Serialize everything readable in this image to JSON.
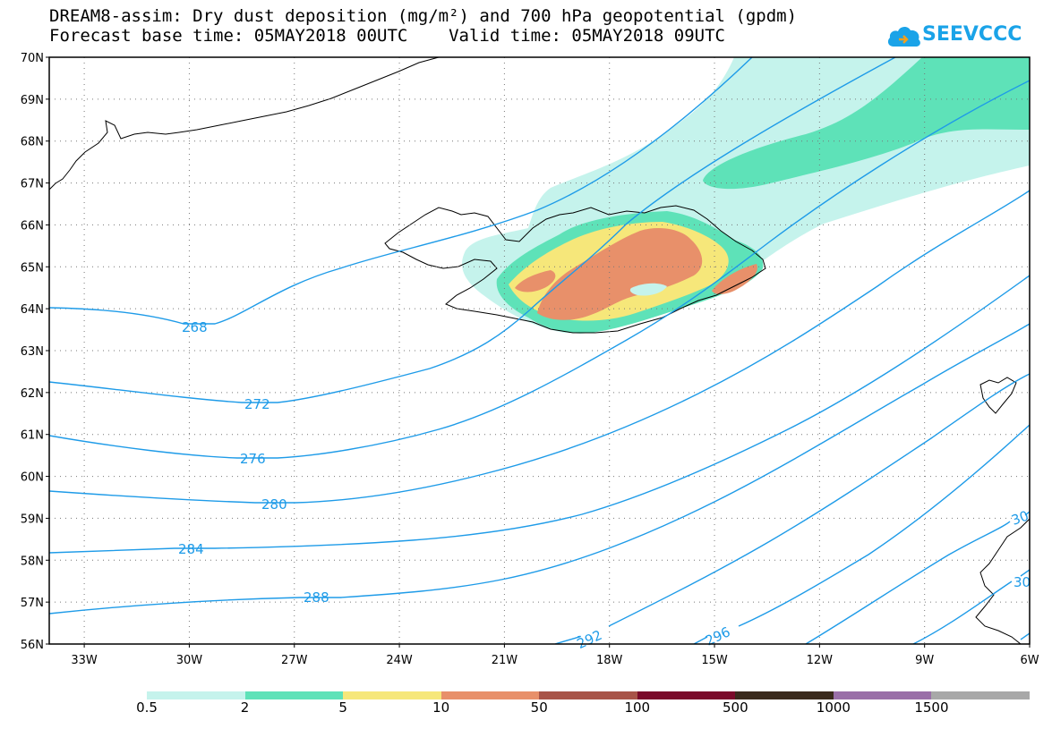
{
  "header": {
    "title_line1": "DREAM8-assim: Dry dust deposition (mg/m²) and 700 hPa geopotential (gpdm)",
    "title_line2": "Forecast base time: 05MAY2018 00UTC    Valid time: 05MAY2018 09UTC"
  },
  "logo": {
    "text": "SEEVCCC",
    "icon": "cloud-arrow-icon",
    "color": "#1aa3e8"
  },
  "map": {
    "lon_range": [
      -34,
      -6
    ],
    "lat_range": [
      56,
      70
    ],
    "lat_labels": [
      "70N",
      "69N",
      "68N",
      "67N",
      "66N",
      "65N",
      "64N",
      "63N",
      "62N",
      "61N",
      "60N",
      "59N",
      "58N",
      "57N",
      "56N"
    ],
    "lon_labels": [
      "33W",
      "30W",
      "27W",
      "24W",
      "21W",
      "18W",
      "15W",
      "12W",
      "9W",
      "6W"
    ],
    "contour_color": "#1e9be8",
    "contour_labels": [
      "268",
      "272",
      "276",
      "280",
      "284",
      "288",
      "292",
      "296",
      "30",
      "30"
    ]
  },
  "colorbar": {
    "colors": [
      "#c5f3ec",
      "#5ee2b8",
      "#f6e77a",
      "#e8906a",
      "#a85448",
      "#7a0a2a",
      "#3a2a1c",
      "#9a6fa8",
      "#a8a8a8"
    ],
    "labels": [
      "0.5",
      "2",
      "5",
      "10",
      "50",
      "100",
      "500",
      "1000",
      "1500"
    ]
  }
}
